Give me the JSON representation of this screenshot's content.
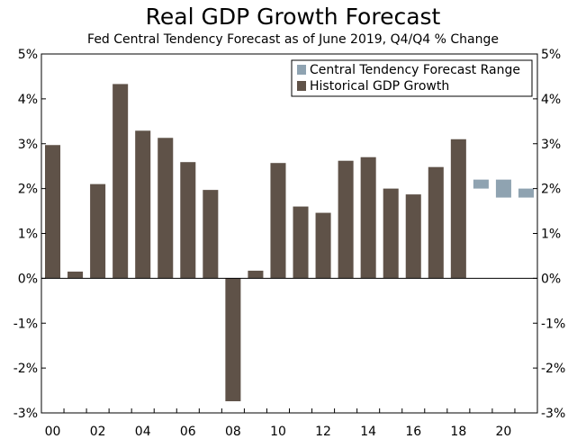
{
  "chart_data": {
    "type": "bar",
    "title": "Real GDP Growth Forecast",
    "subtitle": "Fed Central Tendency Forecast as of June 2019, Q4/Q4 % Change",
    "ylim": [
      -3,
      5
    ],
    "y_ticks": [
      "-3%",
      "-2%",
      "-1%",
      "0%",
      "1%",
      "2%",
      "3%",
      "4%",
      "5%"
    ],
    "y_tick_values": [
      -3,
      -2,
      -1,
      0,
      1,
      2,
      3,
      4,
      5
    ],
    "x_ticks": [
      "00",
      "02",
      "04",
      "06",
      "08",
      "10",
      "12",
      "14",
      "16",
      "18",
      "20"
    ],
    "x_tick_years": [
      2000,
      2002,
      2004,
      2006,
      2008,
      2010,
      2012,
      2014,
      2016,
      2018,
      2020
    ],
    "x_range": [
      2000,
      2021
    ],
    "legend": [
      "Central Tendency Forecast Range",
      "Historical GDP Growth"
    ],
    "legend_position": "top-right",
    "series": [
      {
        "name": "Historical GDP Growth",
        "color": "#5f5248",
        "x": [
          2000,
          2001,
          2002,
          2003,
          2004,
          2005,
          2006,
          2007,
          2008,
          2009,
          2010,
          2011,
          2012,
          2013,
          2014,
          2015,
          2016,
          2017,
          2018
        ],
        "values": [
          2.97,
          0.15,
          2.1,
          4.33,
          3.29,
          3.13,
          2.59,
          1.97,
          -2.74,
          0.17,
          2.57,
          1.6,
          1.46,
          2.62,
          2.7,
          2.0,
          1.87,
          2.48,
          3.1
        ]
      },
      {
        "name": "Central Tendency Forecast Range",
        "color": "#8fa3b1",
        "x": [
          2019,
          2020,
          2021
        ],
        "low": [
          2.0,
          1.8,
          1.8
        ],
        "high": [
          2.2,
          2.2,
          2.0
        ]
      }
    ]
  }
}
